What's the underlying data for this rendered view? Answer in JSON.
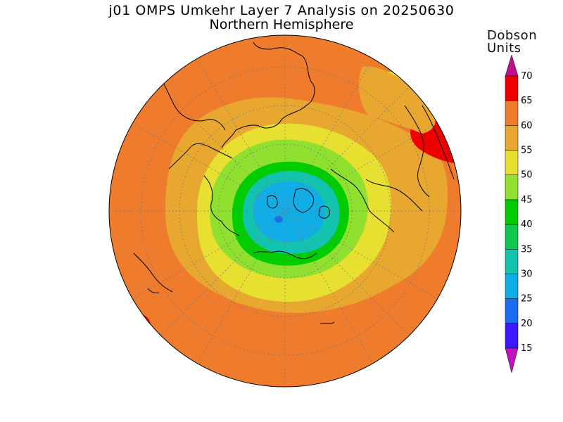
{
  "header": {
    "title": "j01 OMPS Umkehr Layer 7 Analysis on 20250630",
    "subtitle": "Northern Hemisphere"
  },
  "colorbar": {
    "title_line1": "Dobson",
    "title_line2": "Units",
    "levels": [
      15,
      20,
      25,
      30,
      35,
      40,
      45,
      50,
      55,
      60,
      65,
      70
    ],
    "colors": [
      "#7a00e0",
      "#3c18ff",
      "#1a6cf0",
      "#10aee8",
      "#12c4b0",
      "#10c850",
      "#00cc00",
      "#90e030",
      "#e8e030",
      "#e8a830",
      "#ee7c2c",
      "#ee0000"
    ],
    "under_color": "#c010c0",
    "over_color": "#c01090"
  },
  "map_data": {
    "projection": "north-polar-stereographic",
    "field": "ozone layer 7 (Dobson Units)",
    "approx_regions": [
      {
        "region": "pole / Arctic core",
        "value_range": "30-35"
      },
      {
        "region": "high latitudes ring",
        "value_range": "40-50"
      },
      {
        "region": "mid latitudes",
        "value_range": "50-60"
      },
      {
        "region": "subtropics / outer edge",
        "value_range": "60-65"
      },
      {
        "region": "east Asia / NE Pacific patch",
        "value_range": "65-70"
      }
    ]
  }
}
